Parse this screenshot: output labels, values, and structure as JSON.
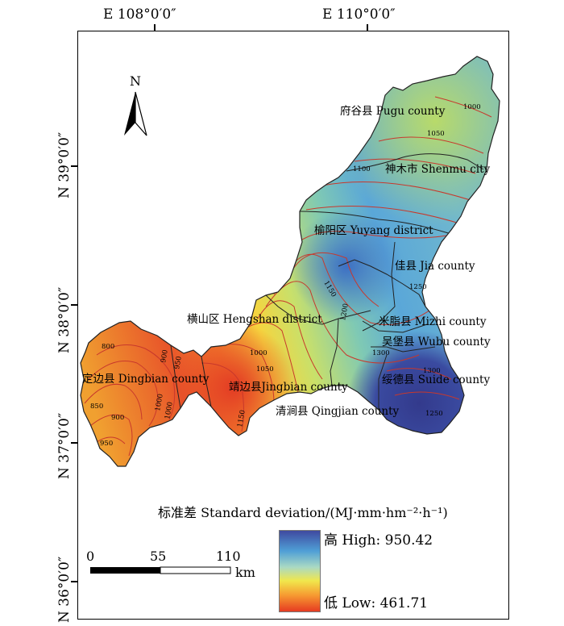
{
  "coords": {
    "top": [
      "E 108°0′0″",
      "E 110°0′0″"
    ],
    "left": [
      "N 39°0′0″",
      "N 38°0′0″",
      "N 37°0′0″",
      "N 36°0′0″"
    ]
  },
  "north_arrow": {
    "label": "N"
  },
  "regions": [
    "府谷县 Pugu county",
    "神木市 Shenmu city",
    "榆阳区 Yuyang district",
    "佳县 Jia county",
    "横山区 Hengshan district",
    "米脂县 Mizhi county",
    "吴堡县 Wubu county",
    "绥德县 Suide county",
    "定边县 Dingbian county",
    "靖边县Jingbian county",
    "清涧县 Qingjian county"
  ],
  "contours": [
    "1000",
    "1050",
    "1100",
    "1150",
    "1200",
    "1250",
    "1300",
    "1250",
    "1300",
    "1050",
    "1000",
    "950",
    "900",
    "850",
    "800",
    "950",
    "900",
    "1000",
    "1000",
    "1150"
  ],
  "legend": {
    "title": "标准差 Standard deviation/(MJ·mm·hm⁻²·h⁻¹)",
    "high": "高 High: 950.42",
    "low": "低 Low: 461.71",
    "colors": [
      "#3f4aa0",
      "#4f9fd6",
      "#a9d9c4",
      "#f1e74c",
      "#f69a31",
      "#e63b22"
    ]
  },
  "scale_bar": {
    "ticks": [
      "0",
      "55",
      "110"
    ],
    "unit": "km"
  }
}
